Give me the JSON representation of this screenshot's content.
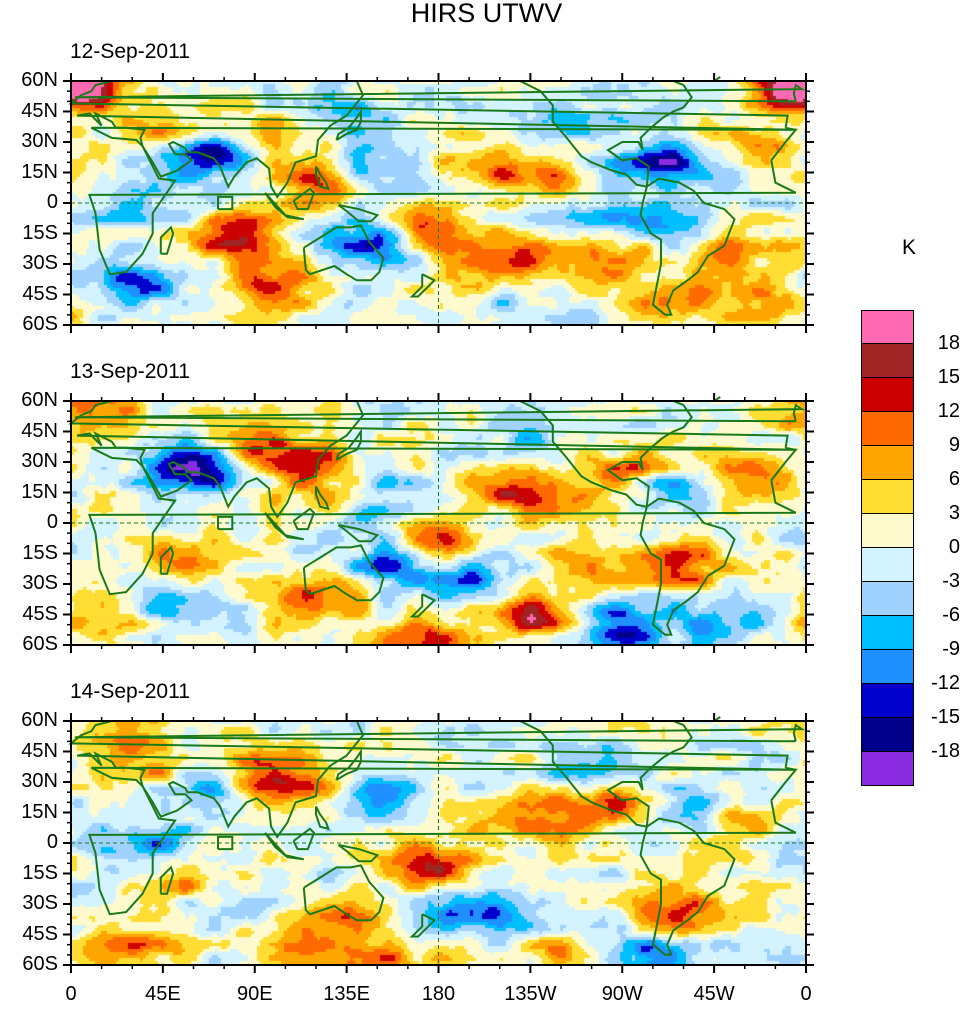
{
  "chart_data": {
    "type": "heatmap",
    "title": "HIRS UTWV",
    "colorbar": {
      "unit": "K",
      "levels": [
        18,
        15,
        12,
        9,
        6,
        3,
        0,
        -3,
        -6,
        -9,
        -12,
        -15,
        -18
      ],
      "colors": [
        "#ff69b4",
        "#a02424",
        "#cc0000",
        "#ff6a00",
        "#ffa500",
        "#ffdd33",
        "#fffacd",
        "#d2f3ff",
        "#a0d2ff",
        "#00bfff",
        "#1e90ff",
        "#0000cd",
        "#00008b",
        "#8a2be2"
      ]
    },
    "x_axis": {
      "range_lon": [
        0,
        360
      ],
      "tick_labels": [
        "0",
        "45E",
        "90E",
        "135E",
        "180",
        "135W",
        "90W",
        "45W",
        "0"
      ]
    },
    "y_axis": {
      "range_lat": [
        -60,
        60
      ],
      "tick_labels": [
        "60N",
        "45N",
        "30N",
        "15N",
        "0",
        "15S",
        "30S",
        "45S",
        "60S"
      ]
    },
    "reference_lines": [
      "equator (dashed)",
      "dateline 180 (dashed)"
    ],
    "panels": [
      {
        "date": "12-Sep-2011",
        "features": [
          {
            "lon": 5,
            "lat": 57,
            "value": 15
          },
          {
            "lon": 65,
            "lat": 25,
            "value": -18
          },
          {
            "lon": 78,
            "lat": -15,
            "value": 15
          },
          {
            "lon": 150,
            "lat": -18,
            "value": -15
          },
          {
            "lon": 178,
            "lat": -12,
            "value": 15
          },
          {
            "lon": 120,
            "lat": 10,
            "value": 12
          },
          {
            "lon": 130,
            "lat": 45,
            "value": -9
          },
          {
            "lon": 145,
            "lat": 18,
            "value": -9
          },
          {
            "lon": 100,
            "lat": -38,
            "value": 12
          },
          {
            "lon": 30,
            "lat": -38,
            "value": -12
          },
          {
            "lon": 50,
            "lat": 35,
            "value": 9
          },
          {
            "lon": 95,
            "lat": 35,
            "value": 9
          },
          {
            "lon": 205,
            "lat": 20,
            "value": 9
          },
          {
            "lon": 230,
            "lat": 12,
            "value": 9
          },
          {
            "lon": 290,
            "lat": 20,
            "value": -15
          },
          {
            "lon": 265,
            "lat": -25,
            "value": 12
          },
          {
            "lon": 220,
            "lat": -27,
            "value": 9
          },
          {
            "lon": 200,
            "lat": -35,
            "value": 12
          },
          {
            "lon": 325,
            "lat": -22,
            "value": 9
          },
          {
            "lon": 295,
            "lat": -45,
            "value": 9
          },
          {
            "lon": 250,
            "lat": -5,
            "value": -6
          },
          {
            "lon": 285,
            "lat": -12,
            "value": -9
          },
          {
            "lon": 245,
            "lat": 45,
            "value": -6
          },
          {
            "lon": 335,
            "lat": 30,
            "value": 9
          },
          {
            "lon": 350,
            "lat": 58,
            "value": 12
          },
          {
            "lon": 210,
            "lat": -40,
            "value": -9
          },
          {
            "lon": 340,
            "lat": -50,
            "value": 9
          },
          {
            "lon": 40,
            "lat": -5,
            "value": -6
          }
        ]
      },
      {
        "date": "13-Sep-2011",
        "features": [
          {
            "lon": 62,
            "lat": 27,
            "value": -18
          },
          {
            "lon": 95,
            "lat": 35,
            "value": 12
          },
          {
            "lon": 130,
            "lat": 27,
            "value": 12
          },
          {
            "lon": 140,
            "lat": 20,
            "value": -12
          },
          {
            "lon": 125,
            "lat": 15,
            "value": 9
          },
          {
            "lon": 178,
            "lat": -10,
            "value": 15
          },
          {
            "lon": 160,
            "lat": -20,
            "value": -15
          },
          {
            "lon": 200,
            "lat": -25,
            "value": -9
          },
          {
            "lon": 170,
            "lat": -58,
            "value": 15
          },
          {
            "lon": 225,
            "lat": -45,
            "value": 15
          },
          {
            "lon": 268,
            "lat": -50,
            "value": -15
          },
          {
            "lon": 275,
            "lat": 25,
            "value": 12
          },
          {
            "lon": 290,
            "lat": 18,
            "value": -12
          },
          {
            "lon": 210,
            "lat": 20,
            "value": 9
          },
          {
            "lon": 230,
            "lat": 12,
            "value": 9
          },
          {
            "lon": 300,
            "lat": -20,
            "value": 12
          },
          {
            "lon": 255,
            "lat": -22,
            "value": 9
          },
          {
            "lon": 60,
            "lat": -15,
            "value": 9
          },
          {
            "lon": 50,
            "lat": -40,
            "value": -9
          },
          {
            "lon": 120,
            "lat": -35,
            "value": 12
          },
          {
            "lon": 15,
            "lat": -45,
            "value": 9
          },
          {
            "lon": 330,
            "lat": 25,
            "value": 9
          },
          {
            "lon": 10,
            "lat": 55,
            "value": 12
          },
          {
            "lon": 150,
            "lat": 3,
            "value": -6
          },
          {
            "lon": 220,
            "lat": 40,
            "value": -6
          },
          {
            "lon": 320,
            "lat": -48,
            "value": -9
          }
        ]
      },
      {
        "date": "14-Sep-2011",
        "features": [
          {
            "lon": 90,
            "lat": 33,
            "value": 15
          },
          {
            "lon": 65,
            "lat": 28,
            "value": -15
          },
          {
            "lon": 125,
            "lat": 30,
            "value": 9
          },
          {
            "lon": 150,
            "lat": 25,
            "value": -12
          },
          {
            "lon": 178,
            "lat": -10,
            "value": 15
          },
          {
            "lon": 195,
            "lat": -30,
            "value": -12
          },
          {
            "lon": 220,
            "lat": -42,
            "value": -9
          },
          {
            "lon": 300,
            "lat": -33,
            "value": 15
          },
          {
            "lon": 275,
            "lat": 22,
            "value": 15
          },
          {
            "lon": 290,
            "lat": 20,
            "value": -12
          },
          {
            "lon": 215,
            "lat": 15,
            "value": 9
          },
          {
            "lon": 240,
            "lat": 10,
            "value": 9
          },
          {
            "lon": 255,
            "lat": 40,
            "value": -9
          },
          {
            "lon": 55,
            "lat": -18,
            "value": 9
          },
          {
            "lon": 130,
            "lat": -35,
            "value": 9
          },
          {
            "lon": 115,
            "lat": -55,
            "value": 12
          },
          {
            "lon": 30,
            "lat": -50,
            "value": 9
          },
          {
            "lon": 20,
            "lat": 55,
            "value": 9
          },
          {
            "lon": 50,
            "lat": 35,
            "value": 9
          },
          {
            "lon": 160,
            "lat": -55,
            "value": 9
          },
          {
            "lon": 235,
            "lat": -50,
            "value": 9
          },
          {
            "lon": 285,
            "lat": -55,
            "value": -12
          },
          {
            "lon": 40,
            "lat": 0,
            "value": -9
          },
          {
            "lon": 80,
            "lat": -30,
            "value": -6
          },
          {
            "lon": 330,
            "lat": 10,
            "value": 6
          }
        ]
      }
    ]
  }
}
